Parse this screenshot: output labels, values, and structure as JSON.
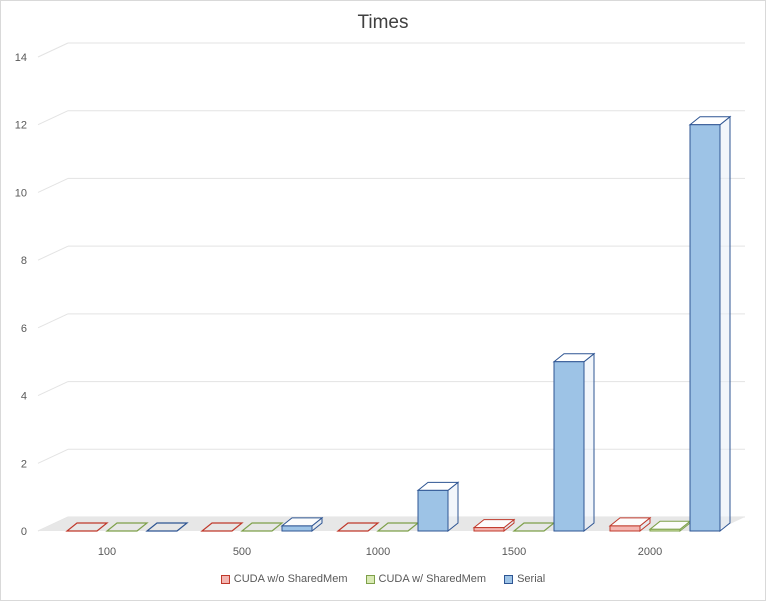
{
  "chart_data": {
    "type": "bar",
    "title": "Times",
    "xlabel": "",
    "ylabel": "",
    "categories": [
      "100",
      "500",
      "1000",
      "1500",
      "2000"
    ],
    "series": [
      {
        "name": "CUDA w/o SharedMem",
        "values": [
          0.0,
          0.0,
          0.0,
          0.1,
          0.15
        ],
        "fill": "#f4b6b2",
        "stroke": "#c0392b"
      },
      {
        "name": "CUDA w/ SharedMem",
        "values": [
          0.0,
          0.0,
          0.0,
          0.0,
          0.05
        ],
        "fill": "#d9eab4",
        "stroke": "#7ea04a"
      },
      {
        "name": "Serial",
        "values": [
          0.0,
          0.15,
          1.2,
          5.0,
          12.0
        ],
        "fill": "#9dc3e6",
        "stroke": "#2e5593"
      }
    ],
    "ylim": [
      0,
      14
    ],
    "yticks": [
      "0",
      "2",
      "4",
      "6",
      "8",
      "10",
      "12",
      "14"
    ],
    "grid": true,
    "legend_position": "bottom",
    "style": "3d-clustered-column"
  }
}
